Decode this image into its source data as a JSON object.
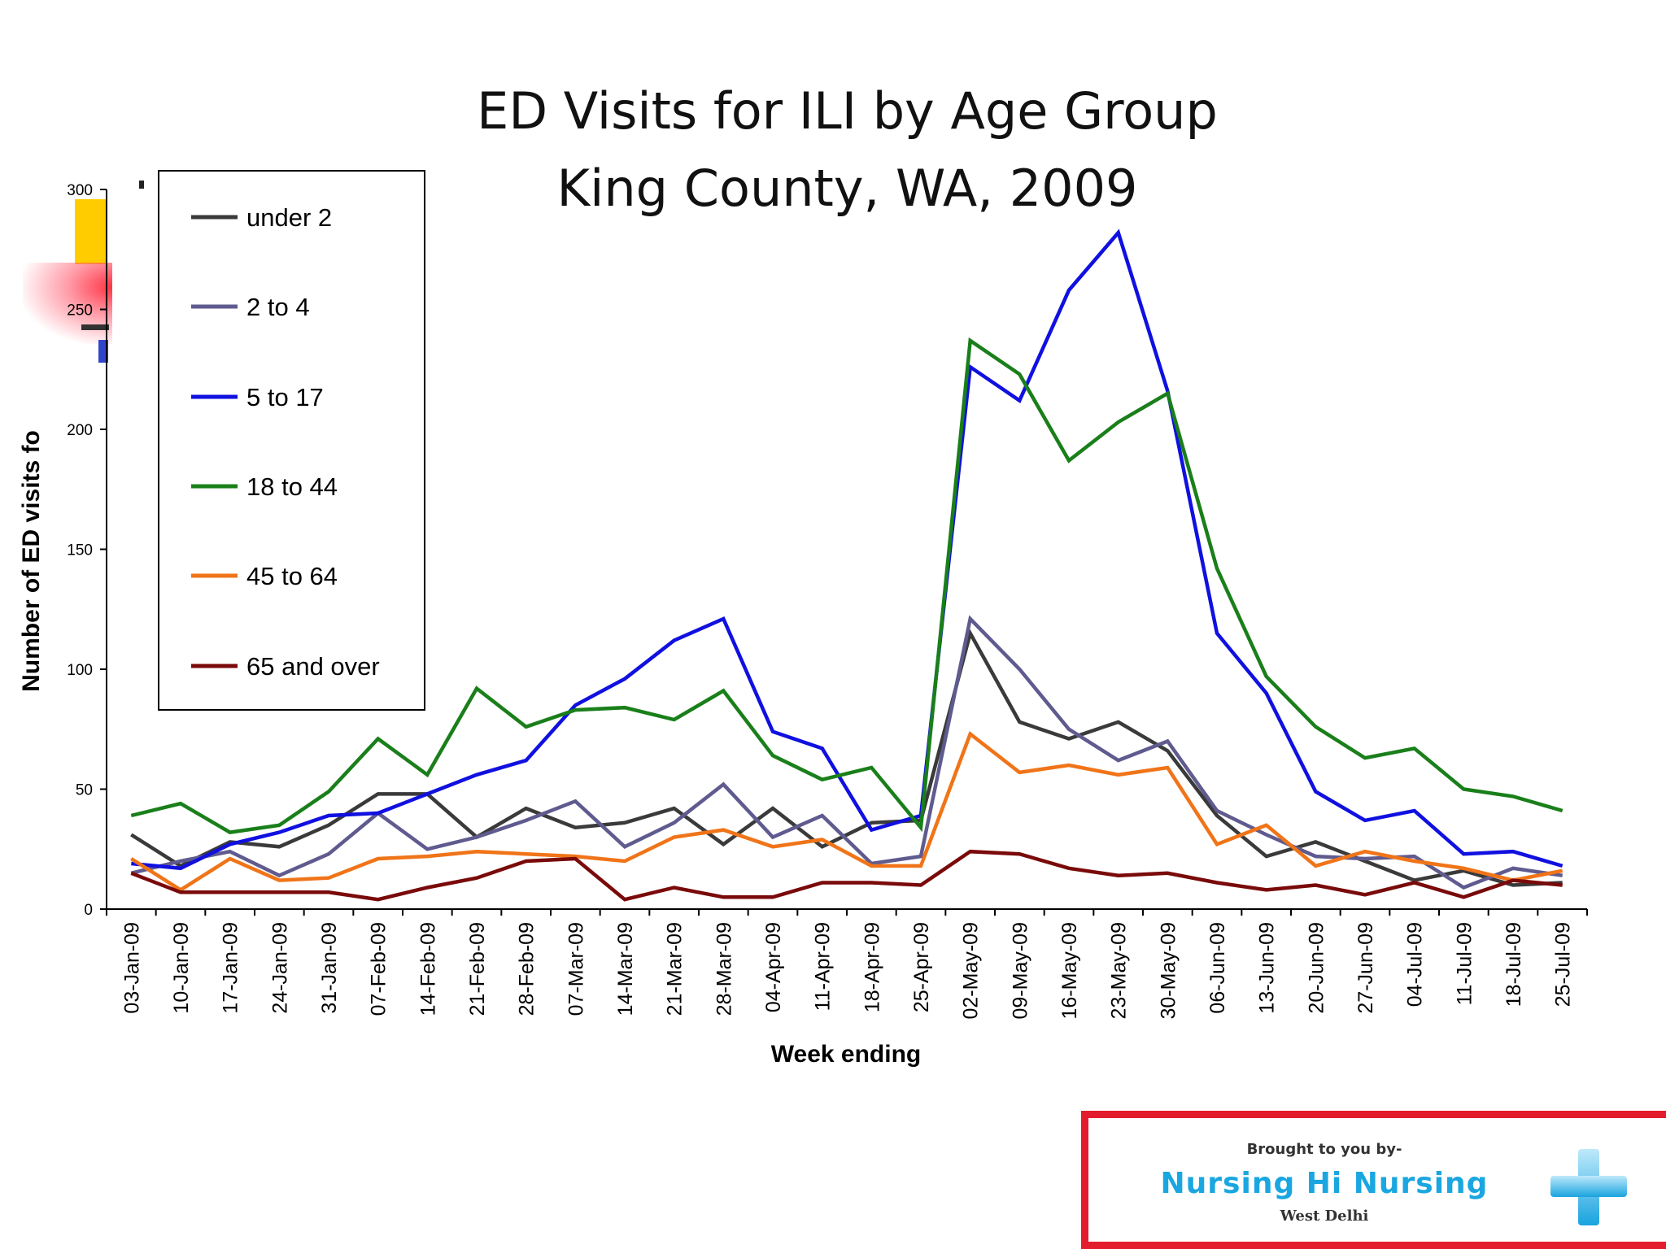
{
  "chart_data": {
    "type": "line",
    "title": "ED Visits for ILI by Age Group",
    "subtitle": "King County, WA, 2009",
    "xlabel": "Week ending",
    "ylabel": "Number of ED visits fo",
    "ylim": [
      0,
      300
    ],
    "yticks": [
      0,
      50,
      100,
      150,
      200,
      250,
      300
    ],
    "grid": false,
    "legend_position": "top-left",
    "categories": [
      "03-Jan-09",
      "10-Jan-09",
      "17-Jan-09",
      "24-Jan-09",
      "31-Jan-09",
      "07-Feb-09",
      "14-Feb-09",
      "21-Feb-09",
      "28-Feb-09",
      "07-Mar-09",
      "14-Mar-09",
      "21-Mar-09",
      "28-Mar-09",
      "04-Apr-09",
      "11-Apr-09",
      "18-Apr-09",
      "25-Apr-09",
      "02-May-09",
      "09-May-09",
      "16-May-09",
      "23-May-09",
      "30-May-09",
      "06-Jun-09",
      "13-Jun-09",
      "20-Jun-09",
      "27-Jun-09",
      "04-Jul-09",
      "11-Jul-09",
      "18-Jul-09",
      "25-Jul-09"
    ],
    "series": [
      {
        "name": "under 2",
        "color": "#3a3a3a",
        "values": [
          31,
          18,
          28,
          26,
          35,
          48,
          48,
          30,
          42,
          34,
          36,
          42,
          27,
          42,
          26,
          36,
          37,
          115,
          78,
          71,
          78,
          66,
          39,
          22,
          28,
          20,
          12,
          16,
          10,
          11
        ]
      },
      {
        "name": "2 to 4",
        "color": "#5f5b8f",
        "values": [
          15,
          20,
          24,
          14,
          23,
          40,
          25,
          30,
          37,
          45,
          26,
          36,
          52,
          30,
          39,
          19,
          22,
          121,
          100,
          75,
          62,
          70,
          41,
          31,
          22,
          21,
          22,
          9,
          17,
          14
        ]
      },
      {
        "name": "5 to 17",
        "color": "#1010e0",
        "values": [
          19,
          17,
          27,
          32,
          39,
          40,
          48,
          56,
          62,
          85,
          96,
          112,
          121,
          74,
          67,
          33,
          39,
          226,
          212,
          258,
          282,
          216,
          115,
          90,
          49,
          37,
          41,
          23,
          24,
          18
        ]
      },
      {
        "name": "18 to 44",
        "color": "#1a7f1a",
        "values": [
          39,
          44,
          32,
          35,
          49,
          71,
          56,
          92,
          76,
          83,
          84,
          79,
          91,
          64,
          54,
          59,
          34,
          237,
          223,
          187,
          203,
          215,
          142,
          97,
          76,
          63,
          67,
          50,
          47,
          41
        ]
      },
      {
        "name": "45 to 64",
        "color": "#f07418",
        "values": [
          21,
          8,
          21,
          12,
          13,
          21,
          22,
          24,
          23,
          22,
          20,
          30,
          33,
          26,
          29,
          18,
          18,
          73,
          57,
          60,
          56,
          59,
          27,
          35,
          18,
          24,
          20,
          17,
          12,
          16
        ]
      },
      {
        "name": "65 and over",
        "color": "#7a0a0a",
        "values": [
          15,
          7,
          7,
          7,
          7,
          4,
          9,
          13,
          20,
          21,
          4,
          9,
          5,
          5,
          11,
          11,
          10,
          24,
          23,
          17,
          14,
          15,
          11,
          8,
          10,
          6,
          11,
          5,
          12,
          10
        ]
      }
    ]
  },
  "banner": {
    "line1": "Brought to you by-",
    "line2": "Nursing Hi Nursing",
    "line3": "West Delhi",
    "icon": "medical-cross-icon",
    "border_color": "#e31d2d",
    "text_color": "#1aa6e0"
  },
  "decorations": {
    "colors": [
      "#ffcc00",
      "#ff3344",
      "#3344cc",
      "#333333"
    ]
  }
}
